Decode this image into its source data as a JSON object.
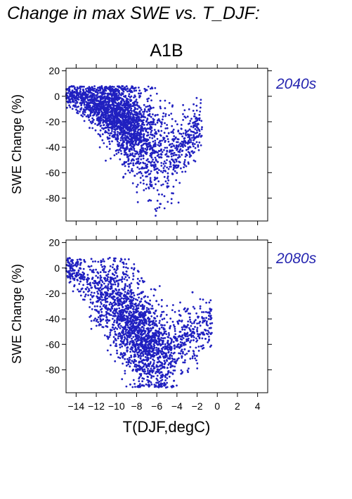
{
  "figure": {
    "title": "Change in max SWE vs. T_DJF:",
    "scenario": "A1B",
    "point_color": "#2020c0",
    "label_color": "#2525b0"
  },
  "chart_data": [
    {
      "type": "scatter",
      "period_label": "2040s",
      "ylabel": "SWE Change (%)",
      "xlabel": "",
      "xlim": [
        -15,
        5
      ],
      "ylim": [
        -98,
        22
      ],
      "yticks": [
        -80,
        -60,
        -40,
        -20,
        0,
        20
      ],
      "xtick_labels_shown": false,
      "grid": false,
      "cloud": {
        "x_range": [
          -15,
          -1.5
        ],
        "trend": [
          [
            -15,
            2
          ],
          [
            -12,
            -6
          ],
          [
            -10,
            -14
          ],
          [
            -8,
            -28
          ],
          [
            -6,
            -42
          ],
          [
            -4,
            -44
          ],
          [
            -2,
            -25
          ]
        ],
        "spread": [
          [
            -15,
            4
          ],
          [
            -12,
            9
          ],
          [
            -10,
            13
          ],
          [
            -8,
            18
          ],
          [
            -6,
            20
          ],
          [
            -4,
            14
          ],
          [
            -2,
            10
          ]
        ],
        "density_peak_x": -9.5
      }
    },
    {
      "type": "scatter",
      "period_label": "2080s",
      "ylabel": "SWE Change (%)",
      "xlabel": "T(DJF,degC)",
      "xlim": [
        -15,
        5
      ],
      "ylim": [
        -98,
        22
      ],
      "yticks": [
        -80,
        -60,
        -40,
        -20,
        0,
        20
      ],
      "xticks": [
        -14,
        -12,
        -10,
        -8,
        -6,
        -4,
        -2,
        0,
        2,
        4
      ],
      "xtick_labels_shown": true,
      "grid": false,
      "cloud": {
        "x_range": [
          -15,
          -0.5
        ],
        "trend": [
          [
            -15,
            2
          ],
          [
            -13,
            -10
          ],
          [
            -11,
            -25
          ],
          [
            -9,
            -40
          ],
          [
            -7,
            -60
          ],
          [
            -5,
            -68
          ],
          [
            -3,
            -55
          ],
          [
            -1,
            -45
          ]
        ],
        "spread": [
          [
            -15,
            5
          ],
          [
            -13,
            12
          ],
          [
            -11,
            16
          ],
          [
            -9,
            20
          ],
          [
            -7,
            18
          ],
          [
            -5,
            14
          ],
          [
            -3,
            14
          ],
          [
            -1,
            10
          ]
        ],
        "density_peak_x": -8
      }
    }
  ]
}
